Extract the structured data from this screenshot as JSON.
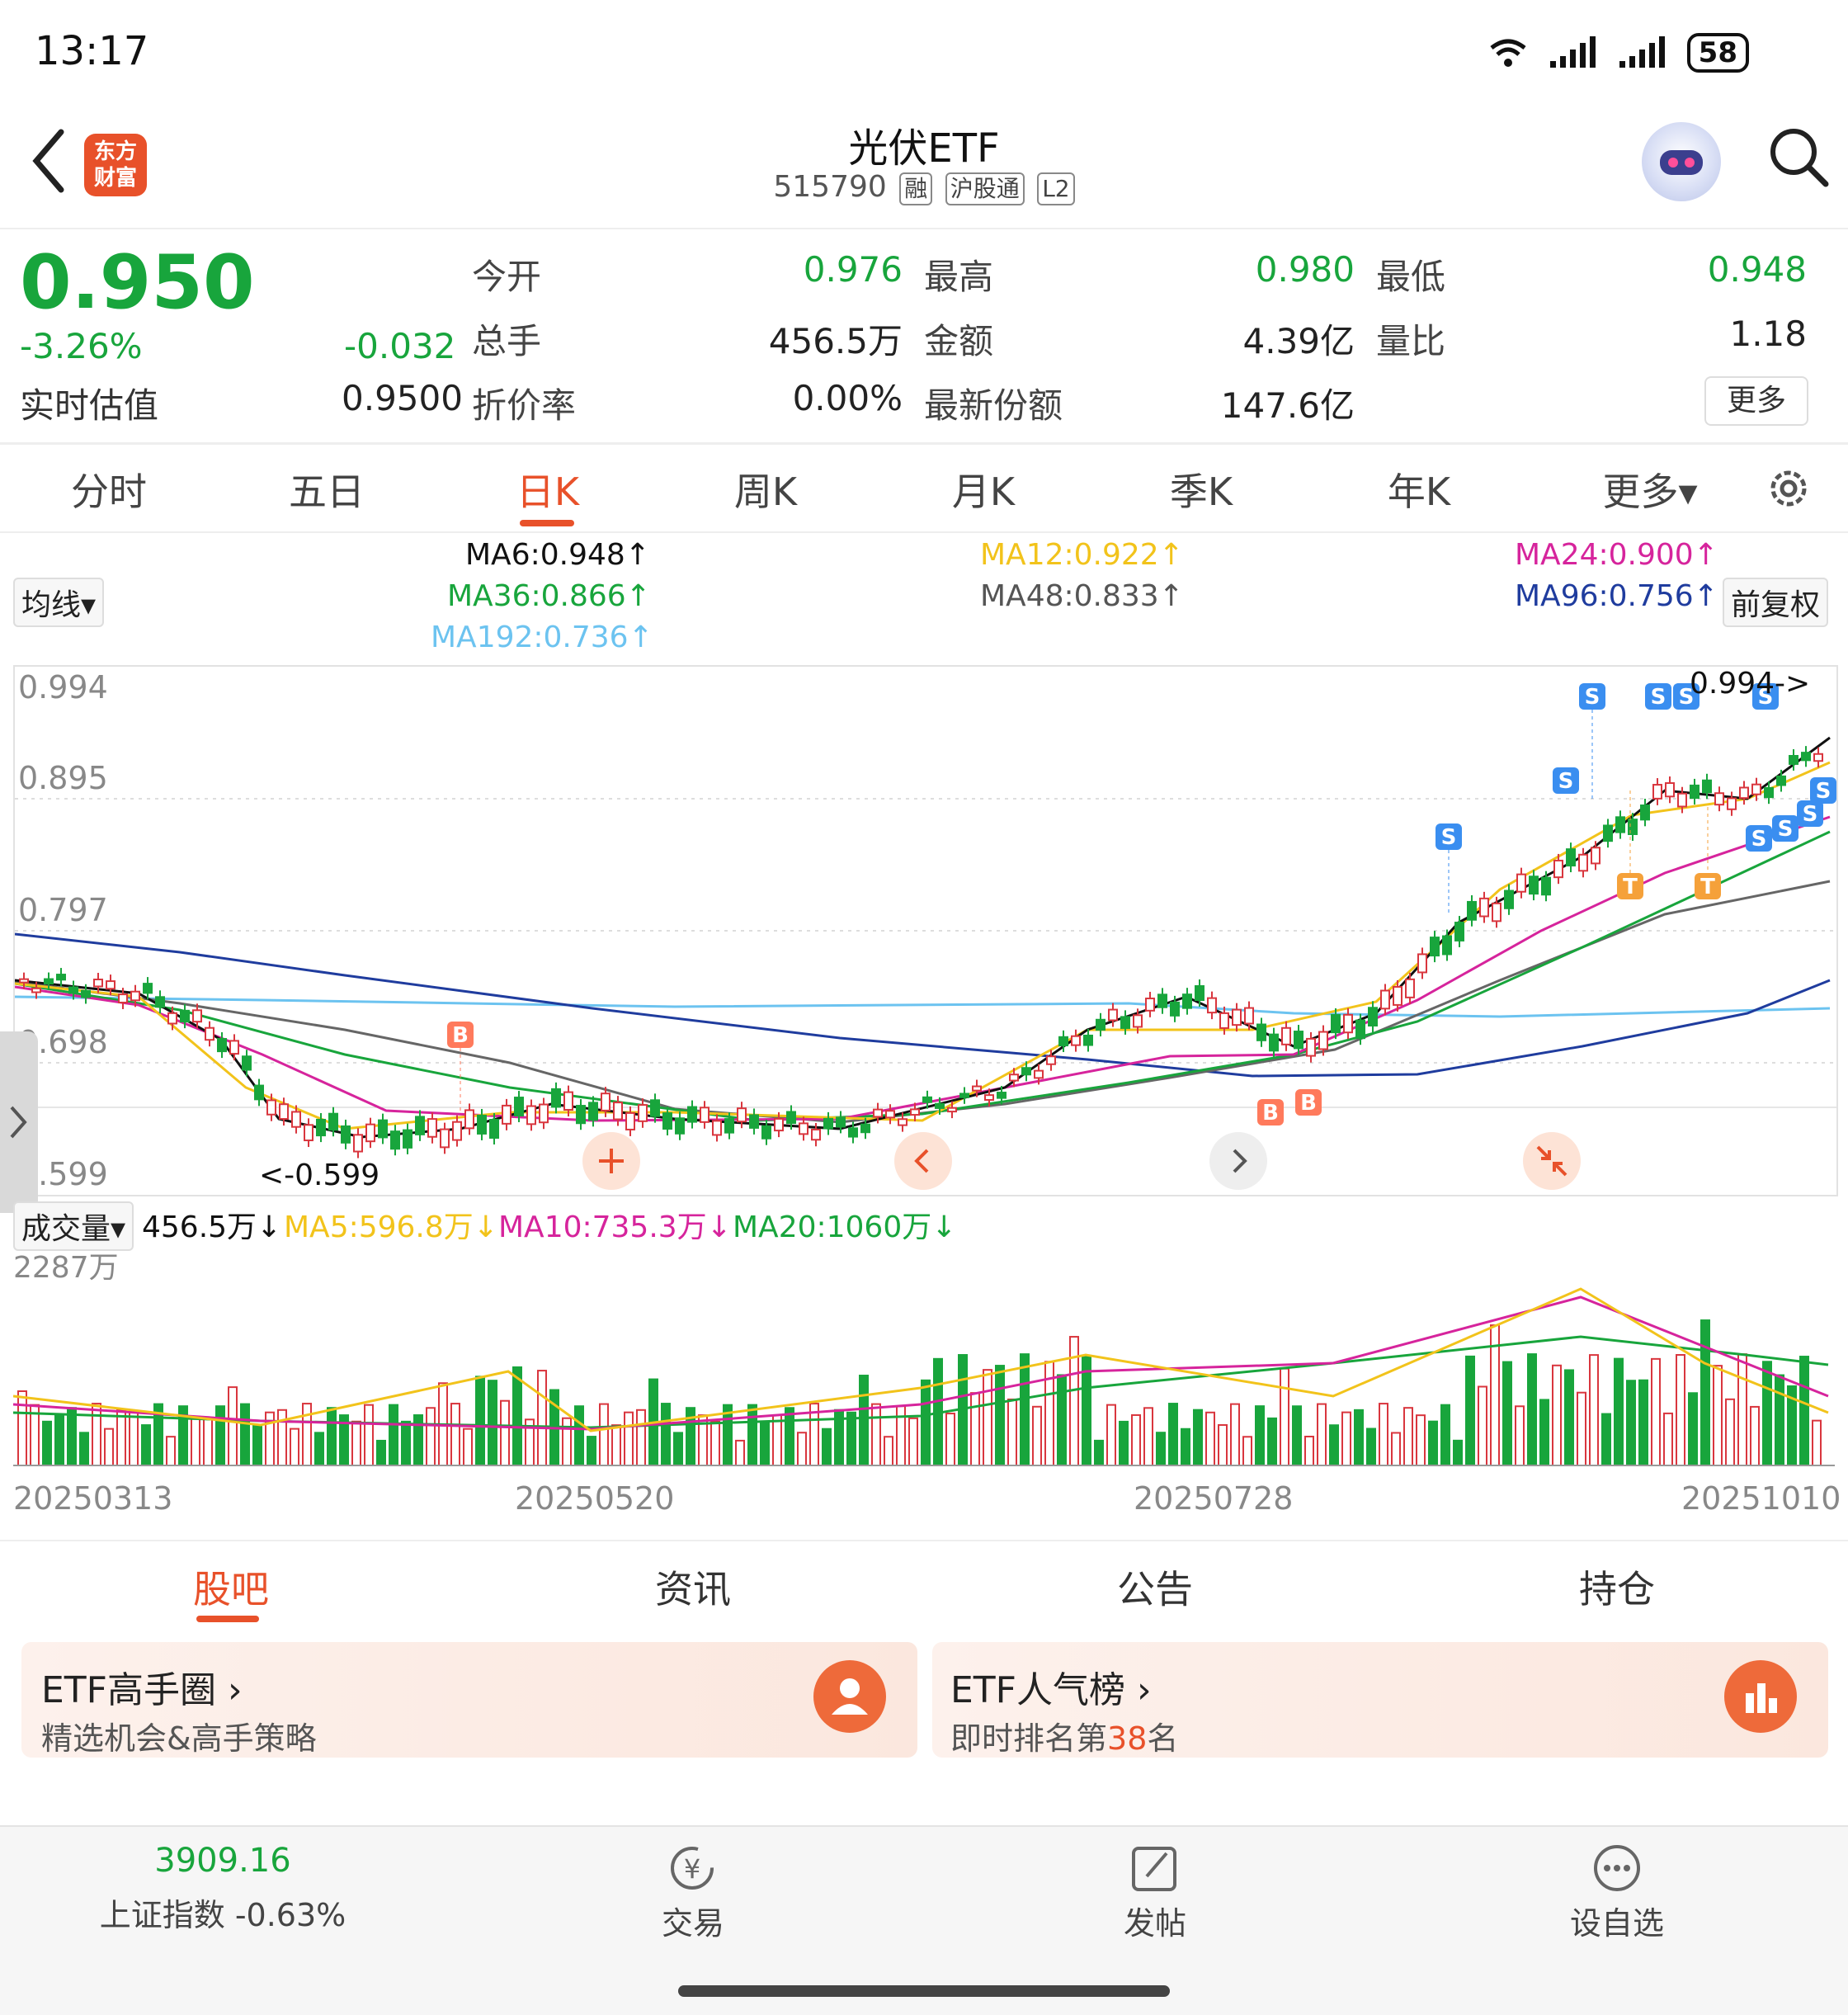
{
  "status_bar": {
    "time": "13:17",
    "battery": "58"
  },
  "header": {
    "logo_text": "东方财富",
    "title": "光伏ETF",
    "code": "515790",
    "tags": [
      "融",
      "沪股通",
      "L2"
    ]
  },
  "quote": {
    "price": "0.950",
    "change_pct": "-3.26%",
    "change": "-0.032",
    "est_label": "实时估值",
    "est_value": "0.9500",
    "open_label": "今开",
    "open": "0.976",
    "high_label": "最高",
    "high": "0.980",
    "low_label": "最低",
    "low": "0.948",
    "volume_label": "总手",
    "volume": "456.5万",
    "amount_label": "金额",
    "amount": "4.39亿",
    "ratio_label": "量比",
    "ratio": "1.18",
    "premium_label": "折价率",
    "premium": "0.00%",
    "shares_label": "最新份额",
    "shares": "147.6亿",
    "more_label": "更多"
  },
  "kline_tabs": [
    "分时",
    "五日",
    "日K",
    "周K",
    "月K",
    "季K",
    "年K",
    "更多▾"
  ],
  "ma_legend": {
    "selector": "均线▾",
    "rights": "前复权",
    "ma6": "MA6:0.948↑",
    "ma12": "MA12:0.922↑",
    "ma24": "MA24:0.900↑",
    "ma36": "MA36:0.866↑",
    "ma48": "MA48:0.833↑",
    "ma96": "MA96:0.756↑",
    "ma192": "MA192:0.736↑"
  },
  "chart": {
    "y_labels": [
      "0.994",
      "0.895",
      "0.797",
      "0.698",
      "0.599"
    ],
    "max_marker": "0.994->",
    "min_marker": "<-0.599",
    "buy_marker": "B",
    "sell_marker": "S",
    "t_marker": "T",
    "colors": {
      "up": "#d9363e",
      "down": "#18a53c",
      "ma6": "#111111",
      "ma12": "#f2c31b",
      "ma24": "#d6249c",
      "ma36": "#18a53c",
      "ma48": "#666666",
      "ma96": "#1f3c9e",
      "ma192": "#6cc3f0"
    }
  },
  "volume_legend": {
    "selector": "成交量▾",
    "vol": "456.5万↓",
    "ma5": "MA5:596.8万↓",
    "ma10": "MA10:735.3万↓",
    "ma20": "MA20:1060万↓",
    "max_label": "2287万"
  },
  "x_labels": [
    "20250313",
    "20250520",
    "20250728",
    "20251010"
  ],
  "content_tabs": [
    "股吧",
    "资讯",
    "公告",
    "持仓"
  ],
  "cards": [
    {
      "title": "ETF高手圈 ›",
      "sub": "精选机会&高手策略"
    },
    {
      "title": "ETF人气榜 ›",
      "sub_pre": "即时排名第",
      "rank": "38",
      "sub_post": "名"
    }
  ],
  "bottom_bar": {
    "index_value": "3909.16",
    "index_label": "上证指数 -0.63%",
    "trade": "交易",
    "post": "发帖",
    "watch": "设自选"
  }
}
